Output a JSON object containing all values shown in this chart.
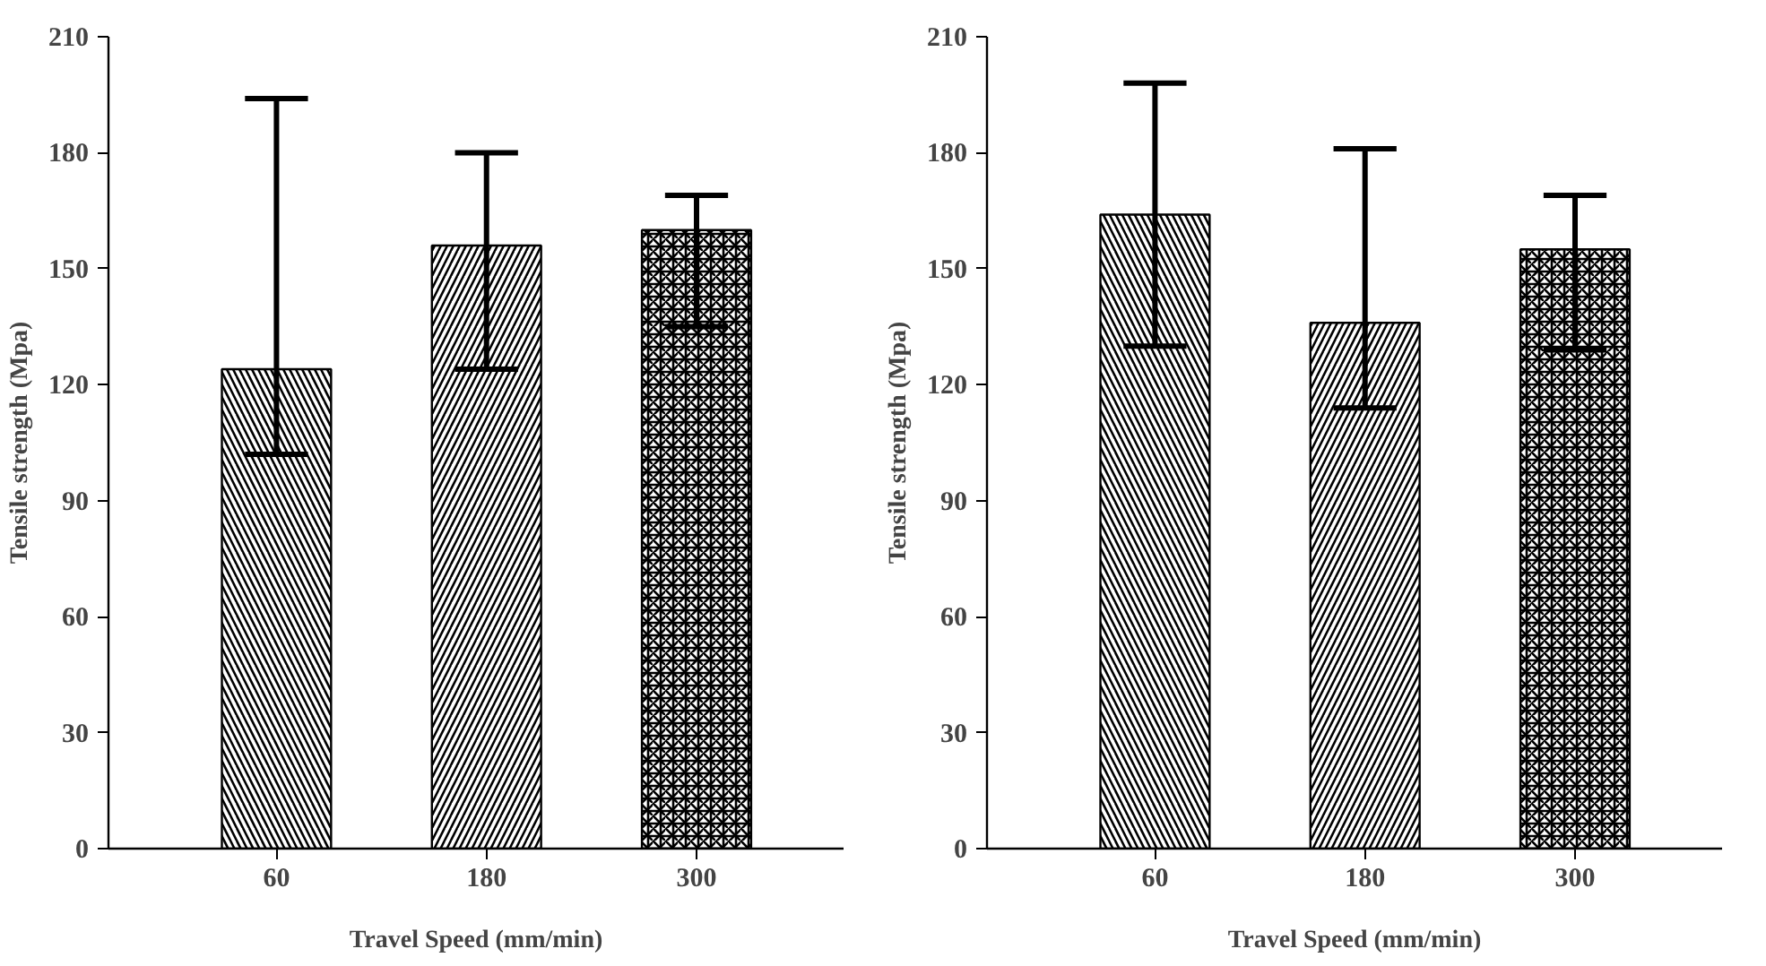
{
  "chart_data": [
    {
      "type": "bar",
      "categories": [
        "60",
        "180",
        "300"
      ],
      "values": [
        124,
        156,
        160
      ],
      "colors": [
        "#000000",
        "#000000",
        "#000000"
      ],
      "errors": [
        [
          102,
          194
        ],
        [
          124,
          180
        ],
        [
          135,
          169
        ]
      ],
      "xlabel": "Travel Speed (mm/min)",
      "ylabel": "Tensile strength (Mpa)",
      "ylim": [
        0,
        210
      ],
      "yticks": [
        0,
        30,
        60,
        90,
        120,
        150,
        180,
        210
      ],
      "grid": false
    },
    {
      "type": "bar",
      "categories": [
        "60",
        "180",
        "300"
      ],
      "values": [
        164,
        136,
        155
      ],
      "colors": [
        "#000000",
        "#000000",
        "#000000"
      ],
      "errors": [
        [
          130,
          198
        ],
        [
          114,
          181
        ],
        [
          129,
          169
        ]
      ],
      "xlabel": "Travel Speed (mm/min)",
      "ylabel": "Tensile strength (Mpa)",
      "ylim": [
        0,
        210
      ],
      "yticks": [
        0,
        30,
        60,
        90,
        120,
        150,
        180,
        210
      ],
      "grid": false
    }
  ]
}
